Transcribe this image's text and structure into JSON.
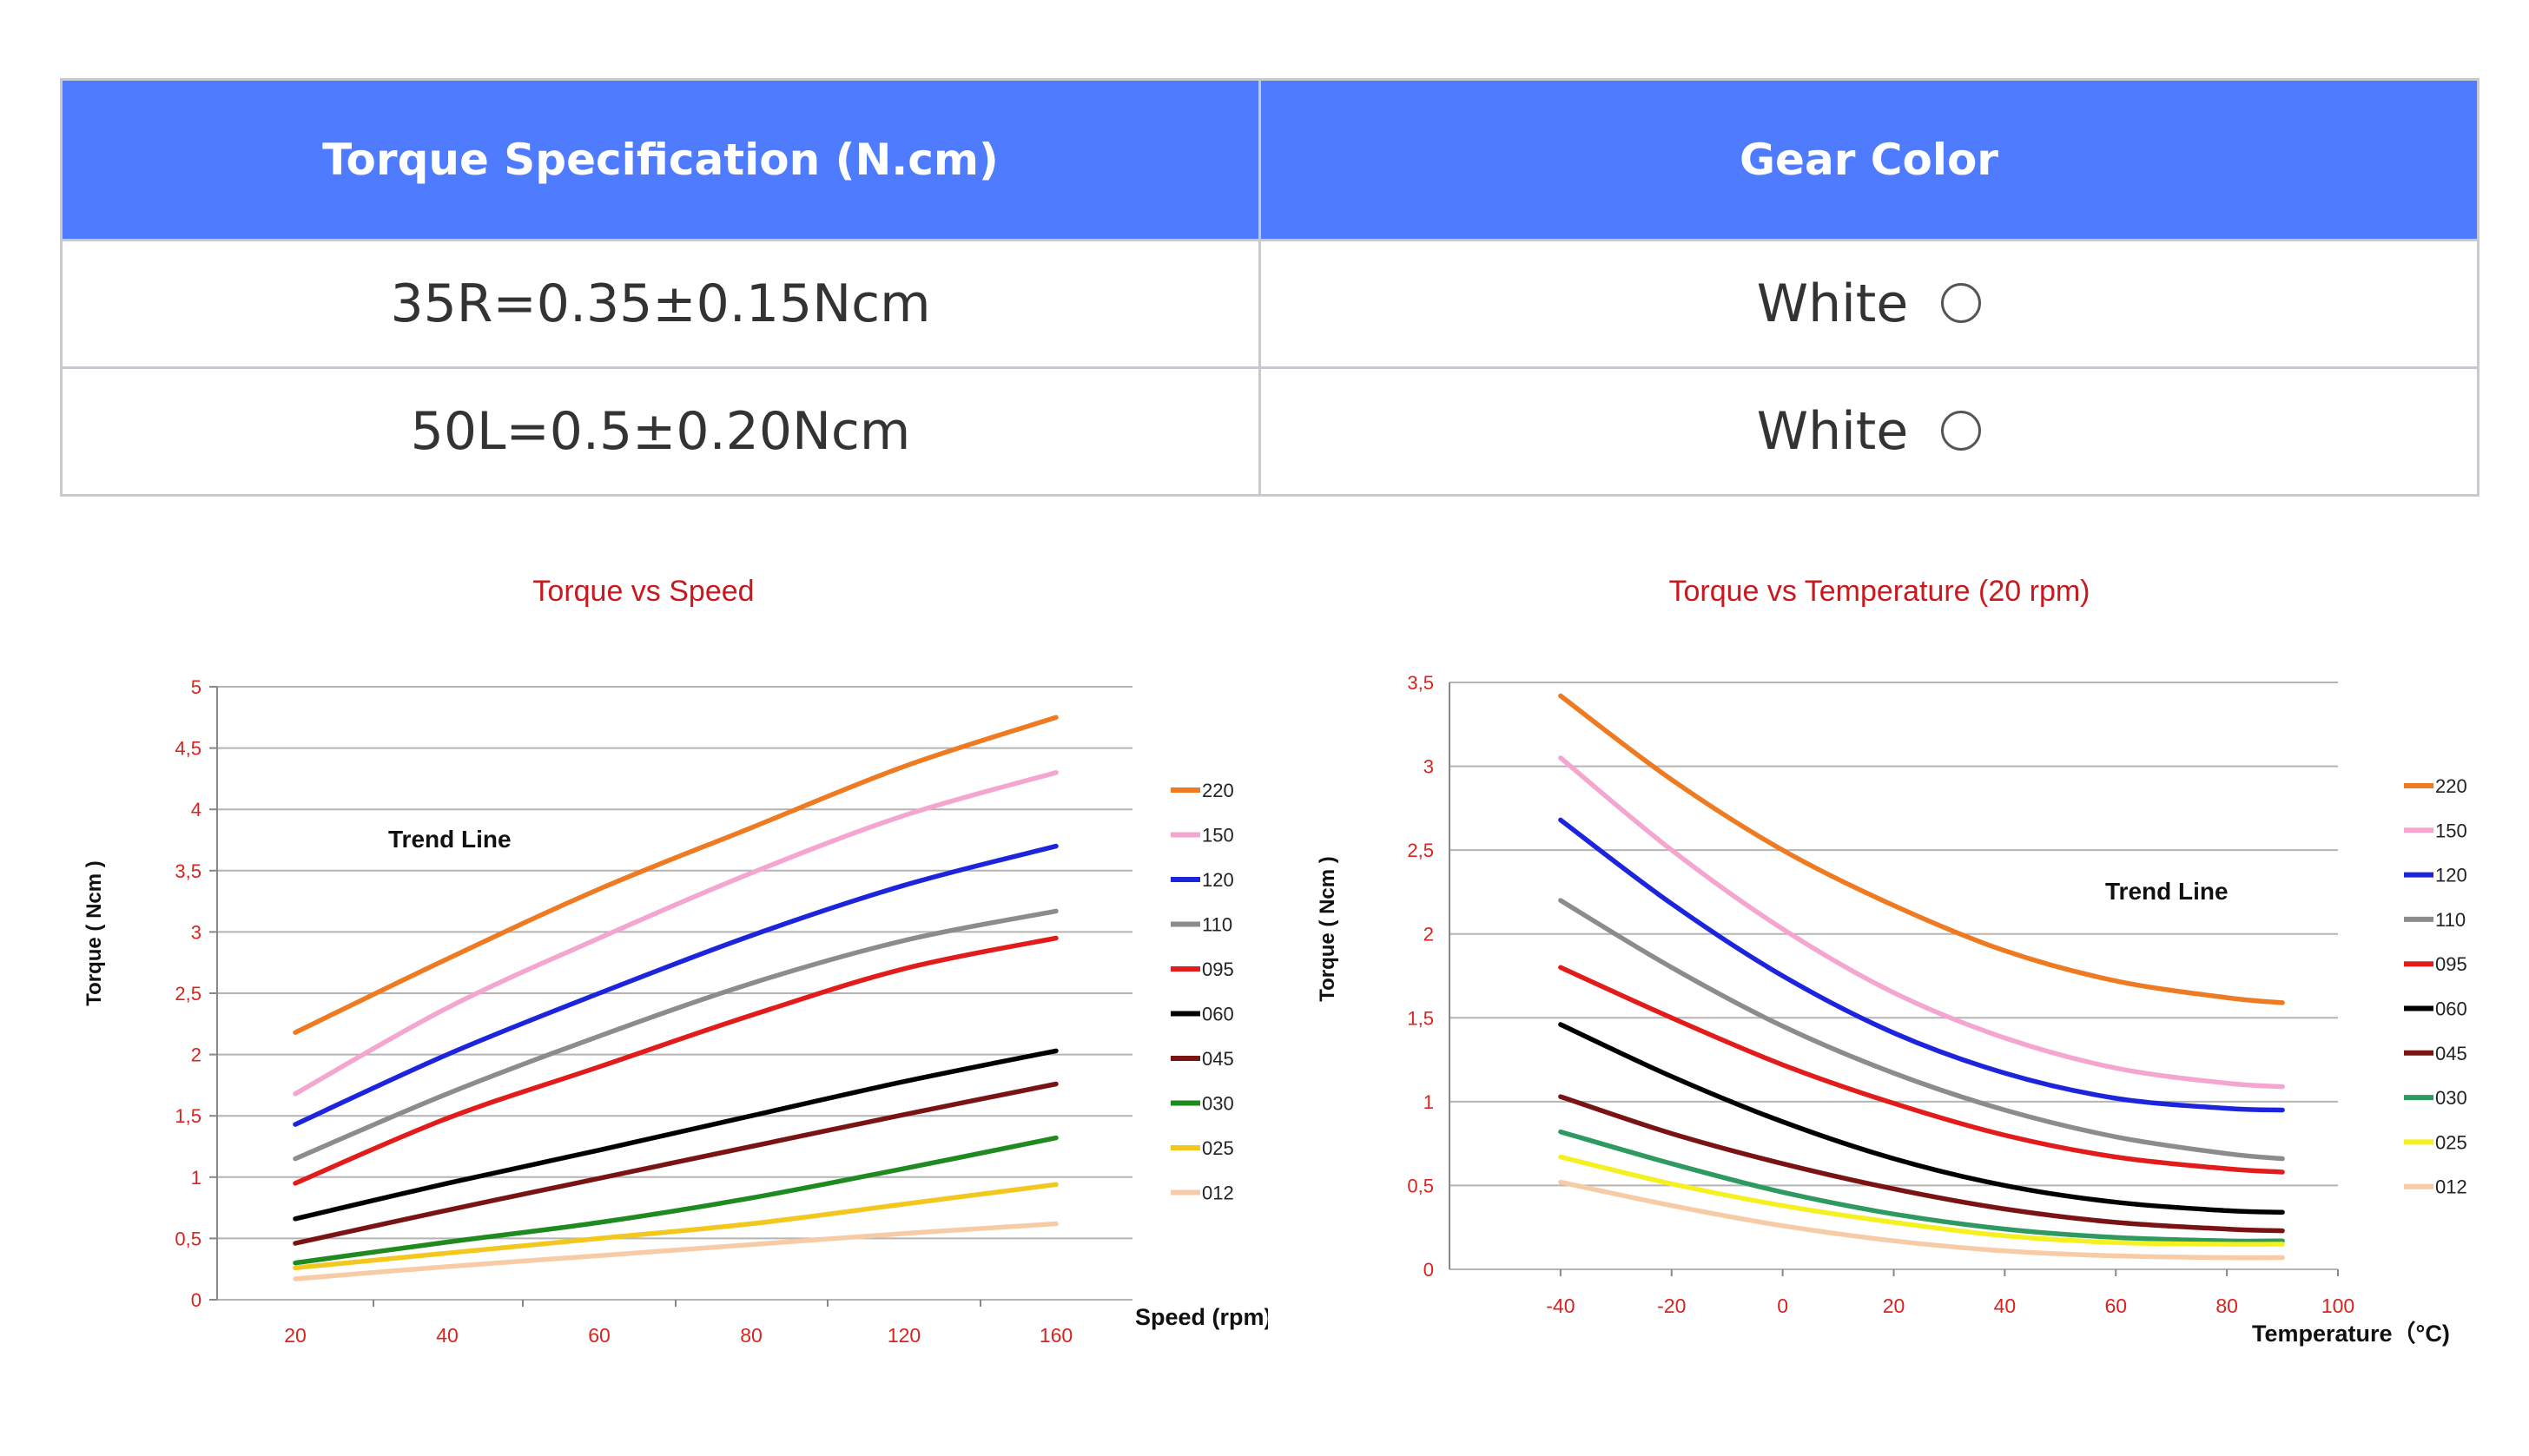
{
  "table": {
    "headers": [
      "Torque Specification (N.cm)",
      "Gear Color"
    ],
    "rows": [
      {
        "spec": "35R=0.35±0.15Ncm",
        "color": "White"
      },
      {
        "spec": "50L=0.5±0.20Ncm",
        "color": "White"
      }
    ]
  },
  "colors": {
    "header_bg": "#4f7cff",
    "axis_tick_red": "#d9231f",
    "title_red": "#c8191e"
  },
  "chart_data": [
    {
      "type": "line",
      "title": "Torque vs Speed",
      "xlabel": "Speed (rpm)",
      "ylabel": "Torque ( Ncm )",
      "annotation": "Trend Line",
      "categories": [
        "20",
        "40",
        "60",
        "80",
        "120",
        "160"
      ],
      "ytick_labels": [
        "0",
        "0,5",
        "1",
        "1,5",
        "2",
        "2,5",
        "3",
        "3,5",
        "4",
        "4,5",
        "5"
      ],
      "ylim": [
        0,
        5
      ],
      "grid": true,
      "legend_position": "right",
      "series": [
        {
          "name": "220",
          "color": "#ee7a22",
          "values": [
            2.18,
            2.78,
            3.35,
            3.85,
            4.35,
            4.75
          ]
        },
        {
          "name": "150",
          "color": "#f4a6d0",
          "values": [
            1.68,
            2.38,
            2.95,
            3.48,
            3.95,
            4.3
          ]
        },
        {
          "name": "120",
          "color": "#1d25dc",
          "values": [
            1.43,
            2.0,
            2.5,
            2.97,
            3.38,
            3.7
          ]
        },
        {
          "name": "110",
          "color": "#8c8c8c",
          "values": [
            1.15,
            1.68,
            2.15,
            2.58,
            2.93,
            3.17
          ]
        },
        {
          "name": "095",
          "color": "#e21b1b",
          "values": [
            0.95,
            1.48,
            1.9,
            2.32,
            2.7,
            2.95
          ]
        },
        {
          "name": "060",
          "color": "#000000",
          "values": [
            0.66,
            0.95,
            1.22,
            1.5,
            1.78,
            2.03
          ]
        },
        {
          "name": "045",
          "color": "#7a1414",
          "values": [
            0.46,
            0.73,
            0.99,
            1.25,
            1.51,
            1.76
          ]
        },
        {
          "name": "030",
          "color": "#1f8a1f",
          "values": [
            0.3,
            0.47,
            0.63,
            0.83,
            1.07,
            1.32
          ]
        },
        {
          "name": "025",
          "color": "#f2c81e",
          "values": [
            0.26,
            0.38,
            0.5,
            0.62,
            0.78,
            0.94
          ]
        },
        {
          "name": "012",
          "color": "#f6cba6",
          "values": [
            0.17,
            0.27,
            0.36,
            0.45,
            0.54,
            0.62
          ]
        }
      ]
    },
    {
      "type": "line",
      "title": "Torque vs Temperature (20 rpm)",
      "xlabel": "Temperature（°C)",
      "ylabel": "Torque ( Ncm )",
      "annotation": "Trend Line",
      "xtick_labels": [
        "-40",
        "-20",
        "0",
        "20",
        "40",
        "60",
        "80",
        "100"
      ],
      "ytick_labels": [
        "0",
        "0,5",
        "1",
        "1,5",
        "2",
        "2,5",
        "3",
        "3,5"
      ],
      "xlim": [
        -60,
        100
      ],
      "ylim": [
        0,
        3.5
      ],
      "grid": true,
      "legend_position": "right",
      "x": [
        -40,
        -20,
        0,
        20,
        40,
        60,
        80,
        90
      ],
      "series": [
        {
          "name": "220",
          "color": "#ee7a22",
          "values": [
            3.42,
            2.92,
            2.5,
            2.17,
            1.9,
            1.72,
            1.62,
            1.59
          ]
        },
        {
          "name": "150",
          "color": "#f4a6d0",
          "values": [
            3.05,
            2.5,
            2.03,
            1.65,
            1.38,
            1.2,
            1.11,
            1.09
          ]
        },
        {
          "name": "120",
          "color": "#1d25dc",
          "values": [
            2.68,
            2.18,
            1.75,
            1.41,
            1.17,
            1.02,
            0.96,
            0.95
          ]
        },
        {
          "name": "110",
          "color": "#8c8c8c",
          "values": [
            2.2,
            1.8,
            1.45,
            1.17,
            0.95,
            0.79,
            0.69,
            0.66
          ]
        },
        {
          "name": "095",
          "color": "#e21b1b",
          "values": [
            1.8,
            1.5,
            1.22,
            0.99,
            0.8,
            0.67,
            0.6,
            0.58
          ]
        },
        {
          "name": "060",
          "color": "#000000",
          "values": [
            1.46,
            1.15,
            0.88,
            0.66,
            0.5,
            0.4,
            0.35,
            0.34
          ]
        },
        {
          "name": "045",
          "color": "#7a1414",
          "values": [
            1.03,
            0.81,
            0.63,
            0.48,
            0.36,
            0.28,
            0.24,
            0.23
          ]
        },
        {
          "name": "030",
          "color": "#2e9a62",
          "values": [
            0.82,
            0.63,
            0.46,
            0.33,
            0.24,
            0.19,
            0.17,
            0.17
          ]
        },
        {
          "name": "025",
          "color": "#f5f020",
          "values": [
            0.67,
            0.51,
            0.38,
            0.28,
            0.2,
            0.16,
            0.15,
            0.15
          ]
        },
        {
          "name": "012",
          "color": "#f6cba6",
          "values": [
            0.52,
            0.38,
            0.26,
            0.17,
            0.11,
            0.08,
            0.07,
            0.07
          ]
        }
      ]
    }
  ]
}
